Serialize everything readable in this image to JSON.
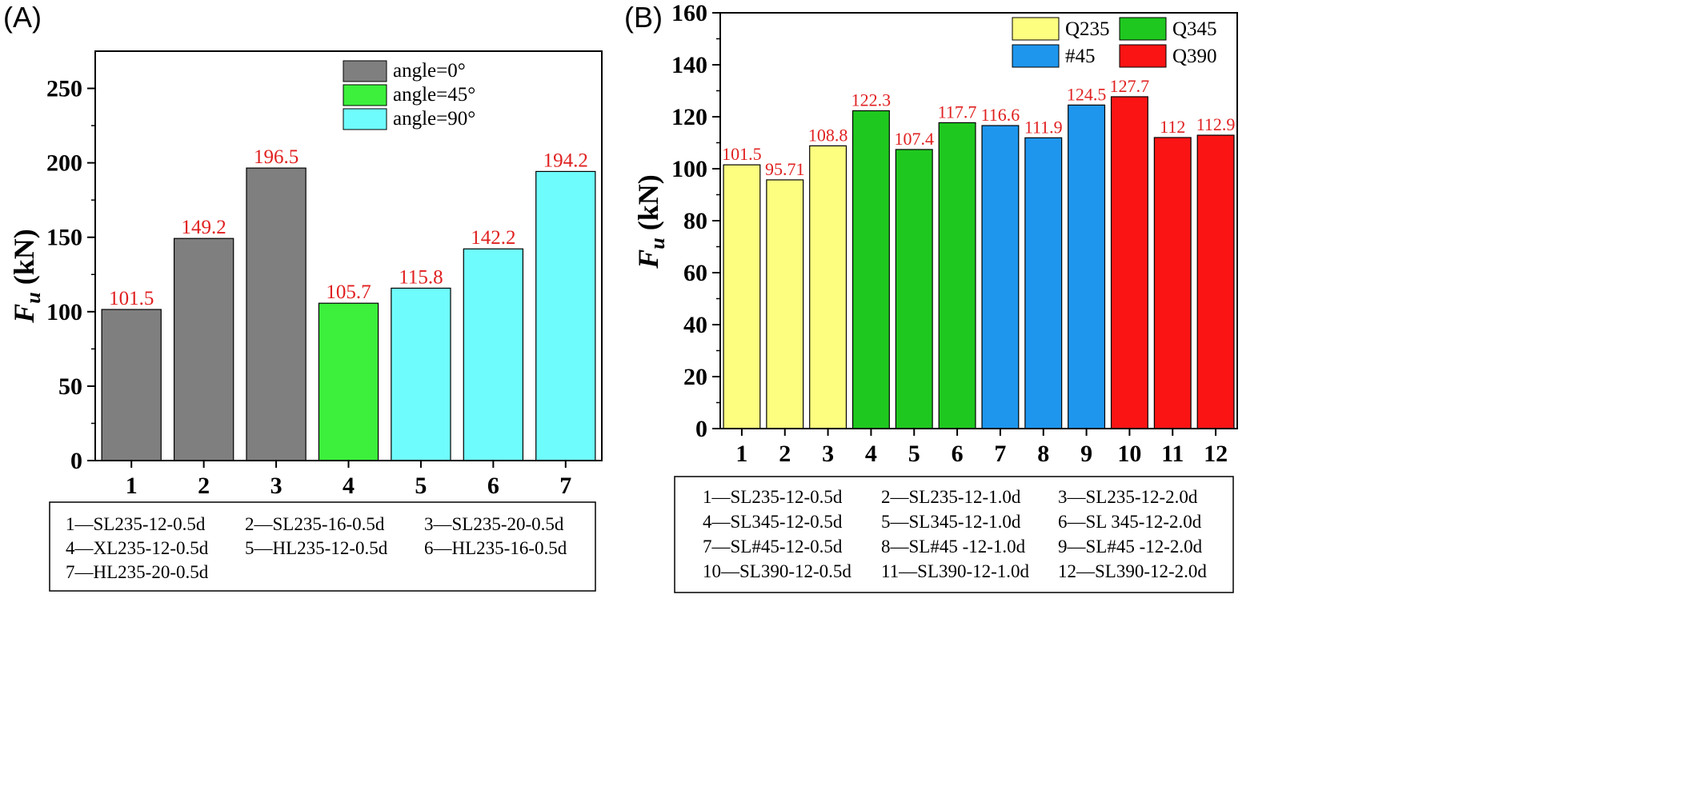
{
  "chart_data": [
    {
      "type": "bar",
      "panel_label": "(A)",
      "ylabel": "Fu (kN)",
      "ylabel_main": "F",
      "ylabel_sub": "u",
      "ylabel_unit": " (kN)",
      "ylim": [
        0,
        275
      ],
      "yticks": [
        0,
        50,
        100,
        150,
        200,
        250
      ],
      "categories": [
        "1",
        "2",
        "3",
        "4",
        "5",
        "6",
        "7"
      ],
      "values": [
        101.5,
        149.2,
        196.5,
        105.7,
        115.8,
        142.2,
        194.2
      ],
      "value_labels": [
        "101.5",
        "149.2",
        "196.5",
        "105.7",
        "115.8",
        "142.2",
        "194.2"
      ],
      "groups": [
        0,
        0,
        0,
        1,
        2,
        2,
        2
      ],
      "legend": [
        {
          "name": "angle=0°",
          "color": "#7f7f7f"
        },
        {
          "name": "angle=45°",
          "color": "#3cf03c"
        },
        {
          "name": "angle=90°",
          "color": "#6ffcfc"
        }
      ],
      "legend_position": "top-right",
      "label_color": "#e02020",
      "notes": [
        "1—SL235-12-0.5d",
        "2—SL235-16-0.5d",
        "3—SL235-20-0.5d",
        "4—XL235-12-0.5d",
        "5—HL235-12-0.5d",
        "6—HL235-16-0.5d",
        "7—HL235-20-0.5d"
      ]
    },
    {
      "type": "bar",
      "panel_label": "(B)",
      "ylabel": "Fu (kN)",
      "ylabel_main": "F",
      "ylabel_sub": "u",
      "ylabel_unit": " (kN)",
      "ylim": [
        0,
        160
      ],
      "yticks": [
        0,
        20,
        40,
        60,
        80,
        100,
        120,
        140,
        160
      ],
      "categories": [
        "1",
        "2",
        "3",
        "4",
        "5",
        "6",
        "7",
        "8",
        "9",
        "10",
        "11",
        "12"
      ],
      "values": [
        101.5,
        95.71,
        108.8,
        122.3,
        107.4,
        117.7,
        116.6,
        111.9,
        124.5,
        127.7,
        112,
        112.9
      ],
      "value_labels": [
        "101.5",
        "95.71",
        "108.8",
        "122.3",
        "107.4",
        "117.7",
        "116.6",
        "111.9",
        "124.5",
        "127.7",
        "112",
        "112.9"
      ],
      "groups": [
        0,
        0,
        0,
        1,
        1,
        1,
        2,
        2,
        2,
        3,
        3,
        3
      ],
      "legend": [
        {
          "name": "Q235",
          "color": "#fdfd80"
        },
        {
          "name": "Q345",
          "color": "#1fc81f"
        },
        {
          "name": "#45",
          "color": "#1e96ee"
        },
        {
          "name": "Q390",
          "color": "#fa1414"
        }
      ],
      "legend_position": "top-right",
      "label_color": "#e02020",
      "notes": [
        "1—SL235-12-0.5d",
        "2—SL235-12-1.0d",
        "3—SL235-12-2.0d",
        "4—SL345-12-0.5d",
        "5—SL345-12-1.0d",
        "6—SL 345-12-2.0d",
        "7—SL#45-12-0.5d",
        "8—SL#45 -12-1.0d",
        "9—SL#45 -12-2.0d",
        "10—SL390-12-0.5d",
        "11—SL390-12-1.0d",
        "12—SL390-12-2.0d"
      ]
    }
  ]
}
